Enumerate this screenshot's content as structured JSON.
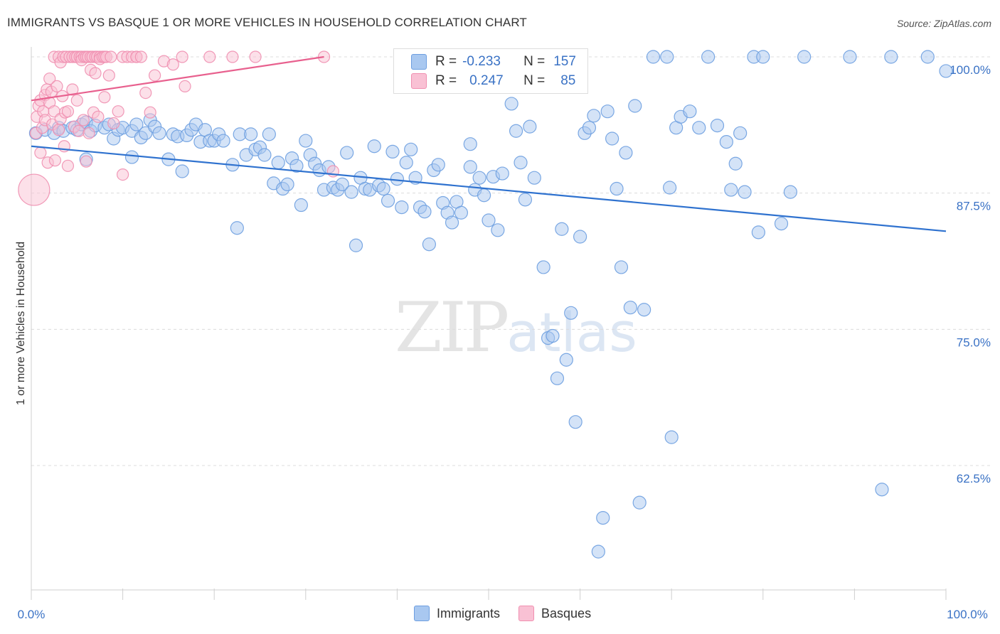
{
  "title": "IMMIGRANTS VS BASQUE 1 OR MORE VEHICLES IN HOUSEHOLD CORRELATION CHART",
  "source": "Source: ZipAtlas.com",
  "watermark": {
    "zip": "ZIP",
    "atlas": "atlas"
  },
  "legend_stats": {
    "immigrants": {
      "r_label": "R =",
      "r_value": "-0.233",
      "n_label": "N =",
      "n_value": "157"
    },
    "basques": {
      "r_label": "R =",
      "r_value": "0.247",
      "n_label": "N =",
      "n_value": "85"
    }
  },
  "chart_data": {
    "type": "scatter",
    "title": "IMMIGRANTS VS BASQUE 1 OR MORE VEHICLES IN HOUSEHOLD CORRELATION CHART",
    "xlabel": "",
    "ylabel": "1 or more Vehicles in Household",
    "xlim": [
      0,
      100
    ],
    "ylim": [
      50,
      101
    ],
    "x_tick_labels": [
      "0.0%",
      "100.0%"
    ],
    "y_tick_values": [
      100,
      87.5,
      75,
      62.5
    ],
    "y_tick_labels": [
      "100.0%",
      "87.5%",
      "75.0%",
      "62.5%"
    ],
    "grid": true,
    "legend": "bottom-center",
    "colors": {
      "immigrants": "#6d9ee0",
      "basques": "#f08fb0",
      "immigrants_line": "#2f72cf",
      "basques_line": "#e8608e",
      "tick_text": "#3a72c5"
    },
    "series": [
      {
        "name": "Immigrants",
        "trend": {
          "x": [
            0,
            100
          ],
          "y": [
            91.8,
            84.0
          ]
        },
        "points": [
          [
            0.5,
            93.0
          ],
          [
            1.5,
            93.3
          ],
          [
            2.5,
            93.0
          ],
          [
            3.0,
            93.5
          ],
          [
            3.5,
            93.2
          ],
          [
            4.5,
            93.5
          ],
          [
            5.0,
            93.3
          ],
          [
            5.5,
            93.8
          ],
          [
            6.0,
            94.0
          ],
          [
            6.5,
            93.2
          ],
          [
            7.0,
            93.7
          ],
          [
            8.0,
            93.5
          ],
          [
            8.5,
            93.8
          ],
          [
            9.0,
            92.5
          ],
          [
            9.5,
            93.3
          ],
          [
            10.0,
            93.5
          ],
          [
            11.0,
            93.2
          ],
          [
            11.5,
            93.8
          ],
          [
            12.0,
            92.6
          ],
          [
            12.5,
            93.0
          ],
          [
            13.0,
            94.2
          ],
          [
            13.5,
            93.6
          ],
          [
            14.0,
            93.0
          ],
          [
            15.0,
            90.6
          ],
          [
            15.5,
            92.9
          ],
          [
            16.0,
            92.7
          ],
          [
            16.5,
            89.5
          ],
          [
            17.0,
            92.8
          ],
          [
            17.5,
            93.3
          ],
          [
            18.0,
            93.8
          ],
          [
            18.5,
            92.2
          ],
          [
            19.0,
            93.3
          ],
          [
            19.5,
            92.3
          ],
          [
            20.0,
            92.3
          ],
          [
            20.5,
            92.9
          ],
          [
            21.0,
            92.3
          ],
          [
            22.0,
            90.1
          ],
          [
            22.5,
            84.3
          ],
          [
            22.8,
            92.9
          ],
          [
            23.5,
            91.0
          ],
          [
            24.0,
            92.9
          ],
          [
            24.5,
            91.5
          ],
          [
            25.0,
            91.7
          ],
          [
            25.5,
            91.0
          ],
          [
            26.0,
            92.9
          ],
          [
            26.5,
            88.4
          ],
          [
            27.0,
            90.3
          ],
          [
            27.5,
            87.9
          ],
          [
            28.0,
            88.3
          ],
          [
            28.5,
            90.7
          ],
          [
            29.0,
            90.0
          ],
          [
            29.5,
            86.4
          ],
          [
            30.0,
            92.3
          ],
          [
            30.5,
            91.0
          ],
          [
            31.0,
            90.2
          ],
          [
            31.5,
            89.6
          ],
          [
            32.0,
            87.8
          ],
          [
            32.5,
            89.9
          ],
          [
            33.0,
            88.0
          ],
          [
            33.5,
            87.8
          ],
          [
            34.0,
            88.3
          ],
          [
            34.5,
            91.2
          ],
          [
            35.0,
            87.6
          ],
          [
            35.5,
            82.7
          ],
          [
            36.0,
            88.9
          ],
          [
            36.5,
            87.9
          ],
          [
            37.0,
            87.8
          ],
          [
            37.5,
            91.8
          ],
          [
            38.0,
            88.2
          ],
          [
            38.5,
            87.9
          ],
          [
            39.0,
            86.8
          ],
          [
            39.5,
            91.3
          ],
          [
            40.0,
            88.8
          ],
          [
            40.5,
            86.2
          ],
          [
            41.0,
            90.3
          ],
          [
            41.5,
            91.5
          ],
          [
            42.0,
            88.9
          ],
          [
            42.5,
            86.2
          ],
          [
            43.0,
            85.8
          ],
          [
            43.5,
            82.8
          ],
          [
            44.0,
            89.6
          ],
          [
            44.5,
            90.1
          ],
          [
            45.0,
            86.6
          ],
          [
            45.5,
            85.7
          ],
          [
            46.0,
            84.8
          ],
          [
            46.5,
            86.7
          ],
          [
            47.0,
            85.7
          ],
          [
            48.0,
            92.0
          ],
          [
            48.5,
            87.8
          ],
          [
            49.0,
            88.9
          ],
          [
            49.5,
            87.3
          ],
          [
            50.0,
            85.0
          ],
          [
            50.5,
            89.0
          ],
          [
            51.0,
            84.1
          ],
          [
            51.5,
            89.3
          ],
          [
            52.5,
            95.7
          ],
          [
            53.0,
            93.2
          ],
          [
            53.5,
            90.3
          ],
          [
            54.0,
            86.9
          ],
          [
            55.0,
            88.9
          ],
          [
            56.0,
            80.7
          ],
          [
            56.5,
            74.2
          ],
          [
            57.0,
            74.4
          ],
          [
            57.5,
            70.5
          ],
          [
            58.0,
            84.2
          ],
          [
            58.5,
            72.2
          ],
          [
            59.0,
            76.5
          ],
          [
            59.5,
            66.5
          ],
          [
            60.0,
            83.5
          ],
          [
            60.5,
            93.0
          ],
          [
            61.0,
            93.5
          ],
          [
            61.5,
            94.6
          ],
          [
            62.0,
            54.6
          ],
          [
            62.5,
            57.7
          ],
          [
            63.0,
            95.0
          ],
          [
            63.5,
            92.5
          ],
          [
            64.0,
            87.9
          ],
          [
            64.5,
            80.7
          ],
          [
            65.0,
            91.2
          ],
          [
            65.5,
            77.0
          ],
          [
            66.0,
            95.5
          ],
          [
            66.5,
            59.1
          ],
          [
            67.0,
            76.8
          ],
          [
            68.0,
            100.0
          ],
          [
            69.5,
            100.0
          ],
          [
            69.8,
            88.0
          ],
          [
            70.0,
            65.1
          ],
          [
            70.5,
            93.5
          ],
          [
            71.0,
            94.5
          ],
          [
            72.0,
            95.0
          ],
          [
            73.0,
            93.5
          ],
          [
            74.0,
            100.0
          ],
          [
            75.0,
            93.7
          ],
          [
            76.0,
            92.2
          ],
          [
            76.5,
            87.8
          ],
          [
            77.0,
            90.2
          ],
          [
            77.5,
            93.0
          ],
          [
            78.0,
            87.6
          ],
          [
            79.0,
            100.0
          ],
          [
            79.5,
            83.9
          ],
          [
            80.0,
            100.0
          ],
          [
            82.0,
            84.7
          ],
          [
            83.0,
            87.6
          ],
          [
            84.5,
            100.0
          ],
          [
            89.5,
            100.0
          ],
          [
            93.0,
            60.3
          ],
          [
            94.0,
            100.0
          ],
          [
            98.0,
            100.0
          ],
          [
            100.0,
            98.7
          ],
          [
            6.0,
            90.6
          ],
          [
            11.0,
            90.8
          ],
          [
            54.5,
            93.6
          ],
          [
            48.0,
            89.9
          ]
        ]
      },
      {
        "name": "Basques",
        "trend": {
          "x": [
            0,
            32
          ],
          "y": [
            96.0,
            100.0
          ]
        },
        "points": [
          [
            0.3,
            87.8
          ],
          [
            0.5,
            93.0
          ],
          [
            0.6,
            94.5
          ],
          [
            0.8,
            95.5
          ],
          [
            1.0,
            96.0
          ],
          [
            1.0,
            91.2
          ],
          [
            1.2,
            93.5
          ],
          [
            1.3,
            95.0
          ],
          [
            1.5,
            96.5
          ],
          [
            1.5,
            94.2
          ],
          [
            1.7,
            97.0
          ],
          [
            1.8,
            90.3
          ],
          [
            2.0,
            95.8
          ],
          [
            2.0,
            98.0
          ],
          [
            2.2,
            96.8
          ],
          [
            2.3,
            93.8
          ],
          [
            2.5,
            95.0
          ],
          [
            2.5,
            100.0
          ],
          [
            2.6,
            90.5
          ],
          [
            2.8,
            97.3
          ],
          [
            3.0,
            100.0
          ],
          [
            3.0,
            93.3
          ],
          [
            3.2,
            94.3
          ],
          [
            3.2,
            99.5
          ],
          [
            3.4,
            96.4
          ],
          [
            3.5,
            100.0
          ],
          [
            3.6,
            91.8
          ],
          [
            3.7,
            94.9
          ],
          [
            3.8,
            100.0
          ],
          [
            4.0,
            90.0
          ],
          [
            4.0,
            95.0
          ],
          [
            4.2,
            100.0
          ],
          [
            4.5,
            97.0
          ],
          [
            4.5,
            100.0
          ],
          [
            4.7,
            93.6
          ],
          [
            4.8,
            100.0
          ],
          [
            5.0,
            100.0
          ],
          [
            5.0,
            96.0
          ],
          [
            5.2,
            93.2
          ],
          [
            5.3,
            100.0
          ],
          [
            5.5,
            100.0
          ],
          [
            5.5,
            99.7
          ],
          [
            5.7,
            94.2
          ],
          [
            5.8,
            100.0
          ],
          [
            6.0,
            100.0
          ],
          [
            6.0,
            90.4
          ],
          [
            6.2,
            100.0
          ],
          [
            6.3,
            93.0
          ],
          [
            6.5,
            98.8
          ],
          [
            6.5,
            100.0
          ],
          [
            6.7,
            100.0
          ],
          [
            6.8,
            94.9
          ],
          [
            7.0,
            100.0
          ],
          [
            7.0,
            98.5
          ],
          [
            7.2,
            100.0
          ],
          [
            7.3,
            94.5
          ],
          [
            7.5,
            100.0
          ],
          [
            7.5,
            99.8
          ],
          [
            7.8,
            100.0
          ],
          [
            8.0,
            100.0
          ],
          [
            8.0,
            96.3
          ],
          [
            8.2,
            100.0
          ],
          [
            8.5,
            98.3
          ],
          [
            8.7,
            100.0
          ],
          [
            9.0,
            93.9
          ],
          [
            9.5,
            95.0
          ],
          [
            10.0,
            89.2
          ],
          [
            10.0,
            100.0
          ],
          [
            10.5,
            100.0
          ],
          [
            11.0,
            100.0
          ],
          [
            11.5,
            100.0
          ],
          [
            11.5,
            100.0
          ],
          [
            12.0,
            100.0
          ],
          [
            12.5,
            96.7
          ],
          [
            13.0,
            94.9
          ],
          [
            13.5,
            98.3
          ],
          [
            14.5,
            99.6
          ],
          [
            15.5,
            99.3
          ],
          [
            16.5,
            100.0
          ],
          [
            16.8,
            97.3
          ],
          [
            19.5,
            100.0
          ],
          [
            22.0,
            100.0
          ],
          [
            24.5,
            100.0
          ],
          [
            32.0,
            100.0
          ],
          [
            33.0,
            89.5
          ]
        ]
      }
    ]
  },
  "bottom_legend": [
    {
      "label": "Immigrants",
      "color": "#a9c8f0",
      "border": "#6d9ee0"
    },
    {
      "label": "Basques",
      "color": "#f9c1d4",
      "border": "#f08fb0"
    }
  ]
}
